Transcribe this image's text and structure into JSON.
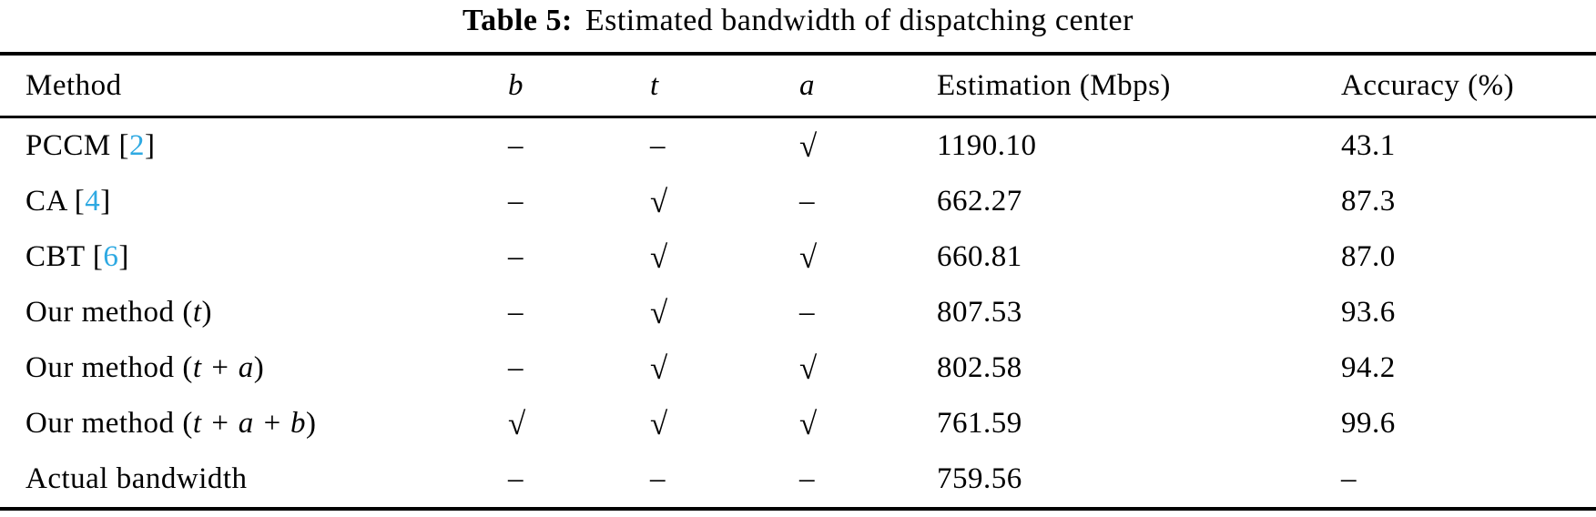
{
  "caption": {
    "label": "Table 5:",
    "text": "Estimated bandwidth of dispatching center"
  },
  "colors": {
    "citation_link": "#2ea9e2",
    "text": "#000000",
    "rule": "#000000"
  },
  "glyphs": {
    "check": "√",
    "dash": "–"
  },
  "table": {
    "headers": {
      "method": "Method",
      "b": "b",
      "t": "t",
      "a": "a",
      "estimation": "Estimation (Mbps)",
      "accuracy": "Accuracy (%)"
    },
    "rows": [
      {
        "name": "PCCM ",
        "cite_open": "[",
        "cite": "2",
        "cite_close": "]",
        "b": "–",
        "t": "–",
        "a": "√",
        "estimation": "1190.10",
        "accuracy": "43.1"
      },
      {
        "name": "CA ",
        "cite_open": "[",
        "cite": "4",
        "cite_close": "]",
        "b": "–",
        "t": "√",
        "a": "–",
        "estimation": "662.27",
        "accuracy": "87.3"
      },
      {
        "name": "CBT ",
        "cite_open": "[",
        "cite": "6",
        "cite_close": "]",
        "b": "–",
        "t": "√",
        "a": "√",
        "estimation": "660.81",
        "accuracy": "87.0"
      },
      {
        "name": "Our method ",
        "params_open": "(",
        "params": "t",
        "params_close": ")",
        "b": "–",
        "t": "√",
        "a": "–",
        "estimation": "807.53",
        "accuracy": "93.6"
      },
      {
        "name": "Our method ",
        "params_open": "(",
        "params": "t + a",
        "params_close": ")",
        "b": "–",
        "t": "√",
        "a": "√",
        "estimation": "802.58",
        "accuracy": "94.2"
      },
      {
        "name": "Our method ",
        "params_open": "(",
        "params": "t + a + b",
        "params_close": ")",
        "b": "√",
        "t": "√",
        "a": "√",
        "estimation": "761.59",
        "accuracy": "99.6"
      },
      {
        "name": "Actual bandwidth",
        "b": "–",
        "t": "–",
        "a": "–",
        "estimation": "759.56",
        "accuracy": "–"
      }
    ]
  }
}
